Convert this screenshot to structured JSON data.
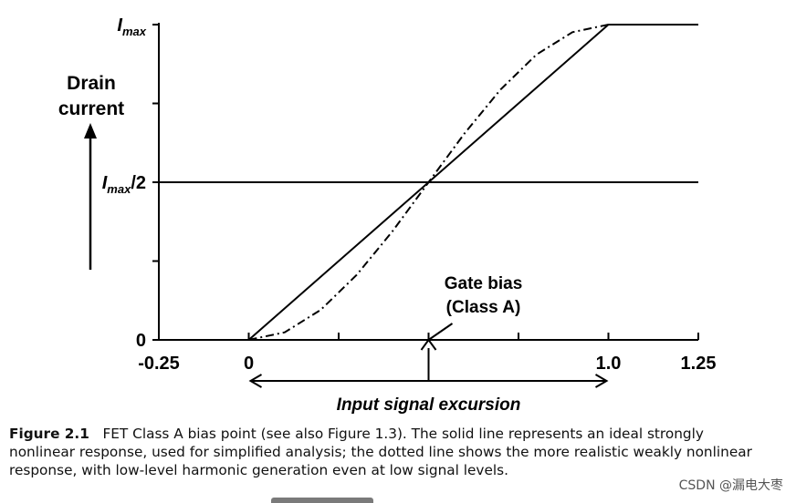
{
  "chart_data": {
    "type": "line",
    "title": "",
    "xlabel": "Input signal excursion",
    "ylabel_lines": [
      "Drain",
      "current"
    ],
    "xlim": [
      -0.25,
      1.25
    ],
    "ylim": [
      0,
      1
    ],
    "x_ticks": [
      {
        "value": -0.25,
        "label": "-0.25"
      },
      {
        "value": 0,
        "label": "0"
      },
      {
        "value": 1.0,
        "label": "1.0"
      },
      {
        "value": 1.25,
        "label": "1.25"
      }
    ],
    "x_minor_ticks": [
      0.25,
      0.5,
      0.75
    ],
    "y_ticks": [
      {
        "value": 0,
        "label_main": "0",
        "label_sub": "",
        "label_suffix": ""
      },
      {
        "value": 0.5,
        "label_main": "I",
        "label_sub": "max",
        "label_suffix": "/2"
      },
      {
        "value": 1,
        "label_main": "I",
        "label_sub": "max",
        "label_suffix": ""
      }
    ],
    "y_minor_ticks": [
      0.25,
      0.75
    ],
    "horizontal_line": 0.5,
    "series": [
      {
        "style": "solid",
        "x": [
          -0.25,
          0,
          1.0,
          1.25
        ],
        "y": [
          0,
          0,
          1,
          1
        ]
      },
      {
        "style": "dash-dot",
        "x": [
          0,
          0.1,
          0.2,
          0.3,
          0.4,
          0.5,
          0.6,
          0.7,
          0.8,
          0.9,
          1.0
        ],
        "y": [
          0,
          0.024,
          0.095,
          0.206,
          0.345,
          0.5,
          0.655,
          0.794,
          0.905,
          0.976,
          1
        ]
      }
    ],
    "annotation": {
      "lines": [
        "Gate bias",
        "(Class A)"
      ],
      "x": 0.5
    },
    "excursion_range": [
      0,
      1.0
    ]
  },
  "caption": {
    "figure_label": "Figure 2.1",
    "text": "FET Class A bias point (see also Figure 1.3). The solid line represents an ideal strongly nonlinear response, used for simplified analysis; the dotted line shows the more realistic weakly nonlinear response, with low-level harmonic generation even at low signal levels."
  },
  "watermark": "CSDN @漏电大枣"
}
